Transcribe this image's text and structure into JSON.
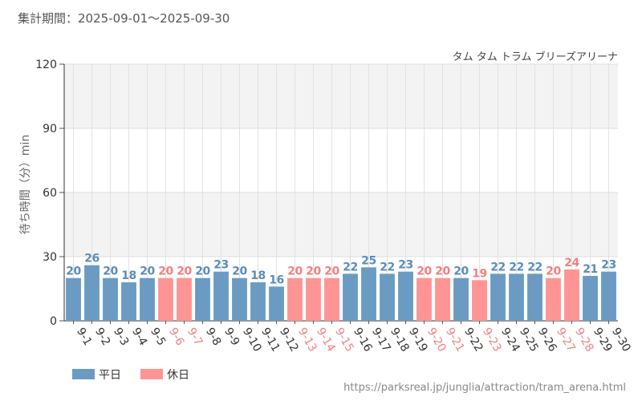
{
  "header": {
    "period_label": "集計期間：2025-09-01～2025-09-30"
  },
  "footer": {
    "url": "https://parksreal.jp/junglia/attraction/tram_arena.html"
  },
  "colors": {
    "weekday": "#6b9bc3",
    "holiday": "#ff9494",
    "weekday_label": "#5b8cb8",
    "holiday_label": "#f08080",
    "band": "#f3f3f3"
  },
  "chart_data": {
    "type": "bar",
    "title": "タム タム トラム ブリーズアリーナ",
    "ylabel": "待ち時間（分）min",
    "xlabel": "",
    "ylim": [
      0,
      120
    ],
    "yticks": [
      0,
      30,
      60,
      90,
      120
    ],
    "categories": [
      "9-1",
      "9-2",
      "9-3",
      "9-4",
      "9-5",
      "9-6",
      "9-7",
      "9-8",
      "9-9",
      "9-10",
      "9-11",
      "9-12",
      "9-13",
      "9-14",
      "9-15",
      "9-16",
      "9-17",
      "9-18",
      "9-19",
      "9-20",
      "9-21",
      "9-22",
      "9-23",
      "9-24",
      "9-25",
      "9-26",
      "9-27",
      "9-28",
      "9-29",
      "9-30"
    ],
    "values": [
      20,
      26,
      20,
      18,
      20,
      20,
      20,
      20,
      23,
      20,
      18,
      16,
      20,
      20,
      20,
      22,
      25,
      22,
      23,
      20,
      20,
      20,
      19,
      22,
      22,
      22,
      20,
      24,
      21,
      23
    ],
    "day_type": [
      "weekday",
      "weekday",
      "weekday",
      "weekday",
      "weekday",
      "holiday",
      "holiday",
      "weekday",
      "weekday",
      "weekday",
      "weekday",
      "weekday",
      "holiday",
      "holiday",
      "holiday",
      "weekday",
      "weekday",
      "weekday",
      "weekday",
      "holiday",
      "holiday",
      "weekday",
      "holiday",
      "weekday",
      "weekday",
      "weekday",
      "holiday",
      "holiday",
      "weekday",
      "weekday"
    ],
    "legend": [
      {
        "key": "weekday",
        "label": "平日"
      },
      {
        "key": "holiday",
        "label": "休日"
      }
    ],
    "legend_position": "bottom-left"
  }
}
